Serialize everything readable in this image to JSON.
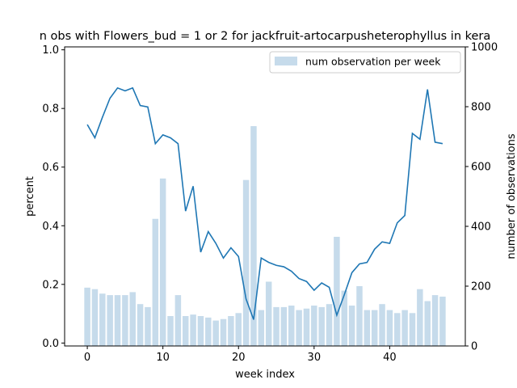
{
  "chart_data": {
    "type": "bar+line",
    "title": "n obs with Flowers_bud = 1 or 2 for jackfruit-artocarpusheterophyllus in kera",
    "xlabel": "week index",
    "ylabel_left": "percent",
    "ylabel_right": "number of observations",
    "xlim": [
      -3,
      50
    ],
    "ylim_left": [
      -0.01,
      1.01
    ],
    "ylim_right": [
      0,
      1000
    ],
    "x_ticks": [
      "0",
      "10",
      "20",
      "30",
      "40"
    ],
    "y_left_ticks": [
      "0.0",
      "0.2",
      "0.4",
      "0.6",
      "0.8",
      "1.0"
    ],
    "y_right_ticks": [
      "0",
      "200",
      "400",
      "600",
      "800",
      "1000"
    ],
    "legend": {
      "position": "top-right",
      "entries": [
        "num observation per week"
      ]
    },
    "colors": {
      "bar": "#c6dbeb",
      "line": "#1f77b4"
    },
    "x": [
      0,
      1,
      2,
      3,
      4,
      5,
      6,
      7,
      8,
      9,
      10,
      11,
      12,
      13,
      14,
      15,
      16,
      17,
      18,
      19,
      20,
      21,
      22,
      23,
      24,
      25,
      26,
      27,
      28,
      29,
      30,
      31,
      32,
      33,
      34,
      35,
      36,
      37,
      38,
      39,
      40,
      41,
      42,
      43,
      44,
      45,
      46,
      47
    ],
    "bar_series": {
      "name": "num observation per week",
      "axis": "right",
      "values": [
        195,
        190,
        175,
        170,
        170,
        170,
        180,
        140,
        130,
        425,
        560,
        100,
        170,
        100,
        105,
        100,
        95,
        85,
        90,
        100,
        110,
        555,
        735,
        120,
        215,
        130,
        130,
        135,
        120,
        125,
        135,
        130,
        140,
        365,
        185,
        135,
        200,
        120,
        120,
        140,
        120,
        110,
        120,
        110,
        190,
        150,
        170,
        165
      ]
    },
    "line_series": {
      "axis": "left",
      "values": [
        0.745,
        0.7,
        0.77,
        0.835,
        0.87,
        0.86,
        0.87,
        0.81,
        0.805,
        0.68,
        0.71,
        0.7,
        0.68,
        0.45,
        0.535,
        0.31,
        0.38,
        0.34,
        0.29,
        0.325,
        0.295,
        0.15,
        0.08,
        0.29,
        0.275,
        0.265,
        0.26,
        0.245,
        0.22,
        0.21,
        0.18,
        0.205,
        0.19,
        0.095,
        0.165,
        0.24,
        0.27,
        0.275,
        0.32,
        0.345,
        0.34,
        0.41,
        0.435,
        0.715,
        0.695,
        0.865,
        0.685,
        0.68
      ]
    }
  }
}
